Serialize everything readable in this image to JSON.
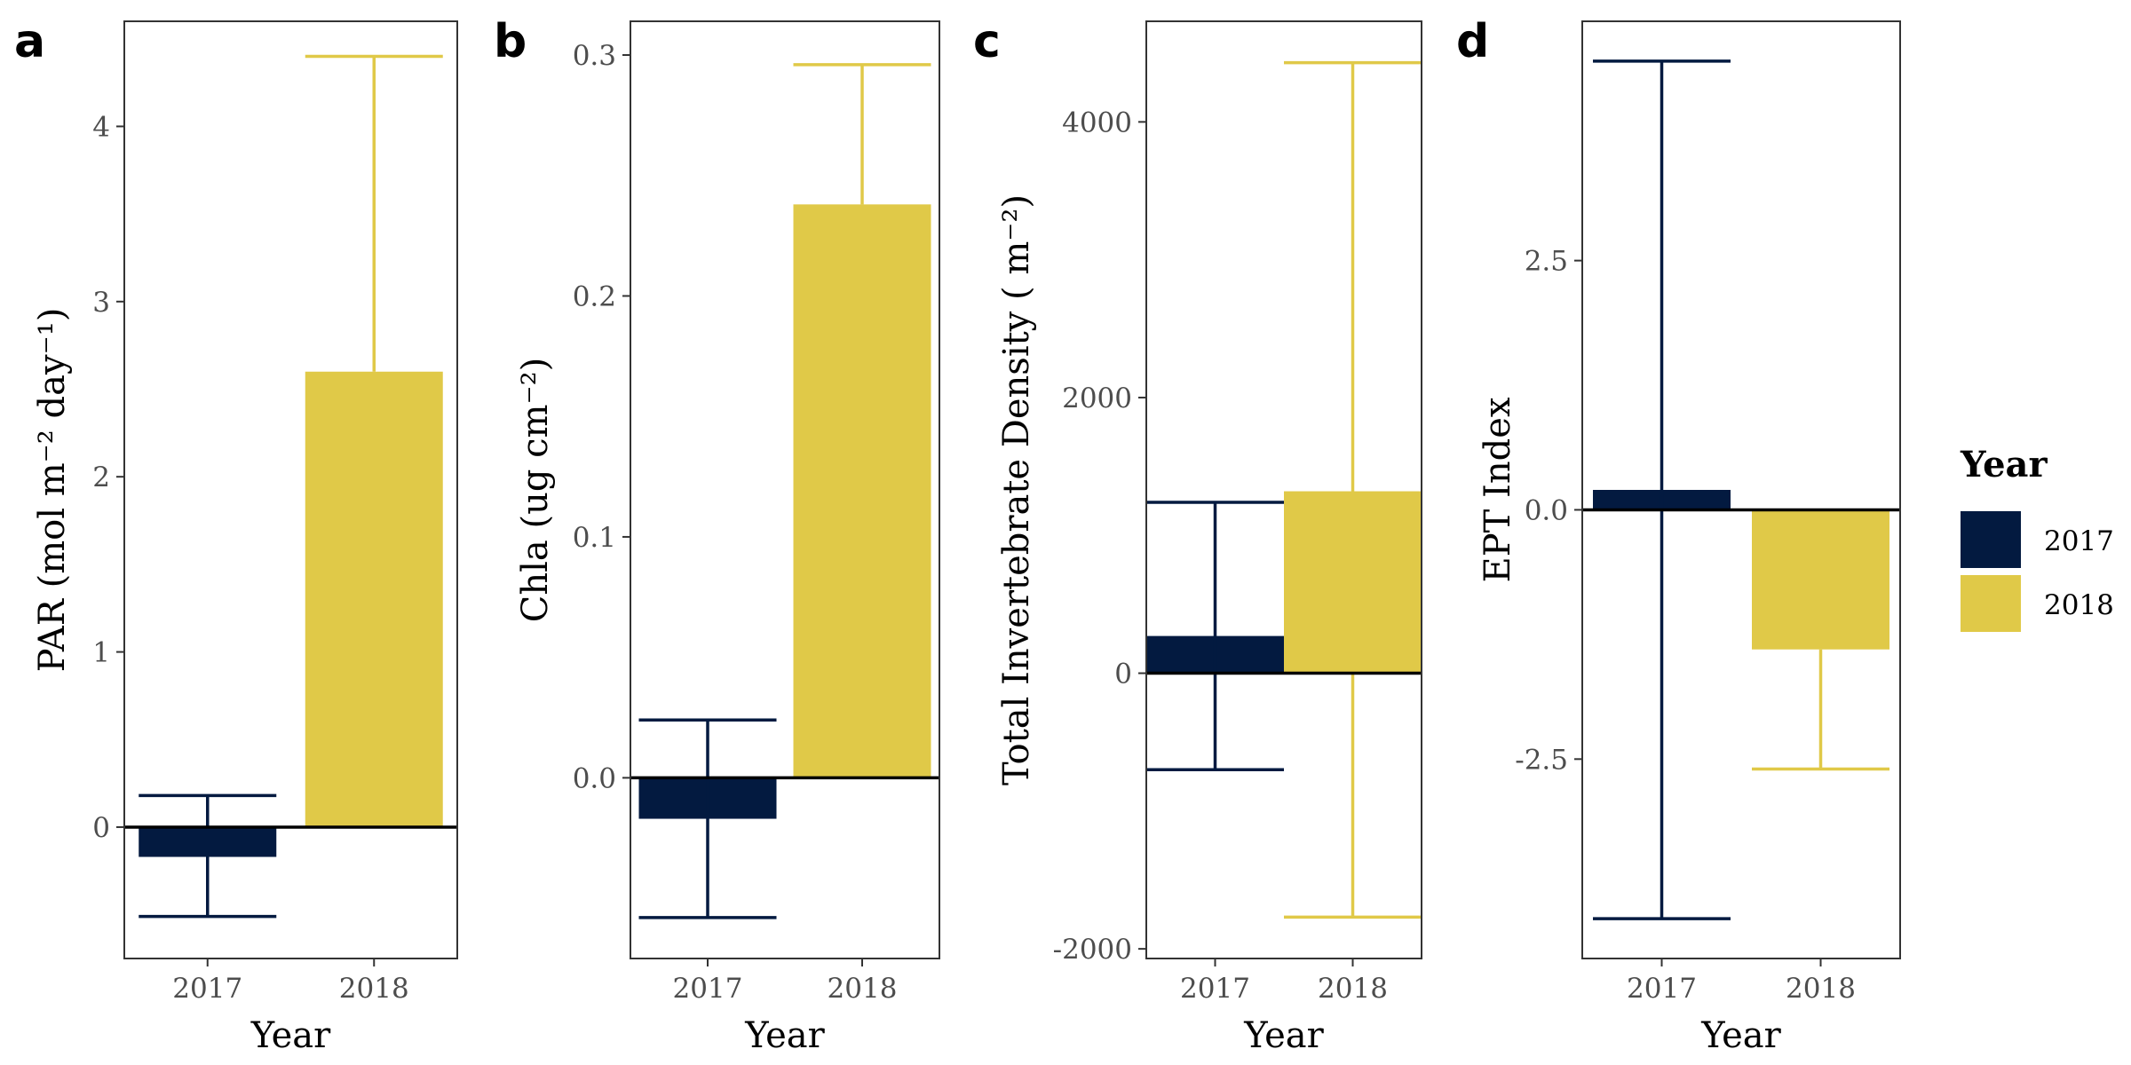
{
  "colors": {
    "2017": "#031a40",
    "2018": "#e0c948"
  },
  "legend": {
    "title": "Year",
    "items": [
      "2017",
      "2018"
    ]
  },
  "chart_data": [
    {
      "panel": "a",
      "type": "bar",
      "categories": [
        "2017",
        "2018"
      ],
      "values": [
        -0.17,
        2.6
      ],
      "error_low": [
        -0.51,
        2.6
      ],
      "error_high": [
        0.18,
        4.4
      ],
      "xlabel": "Year",
      "ylabel": "PAR (mol m⁻² day⁻¹)",
      "ylim": [
        -0.75,
        4.6
      ],
      "yticks": [
        0,
        1,
        2,
        3,
        4
      ],
      "ytick_labels": [
        "0",
        "1",
        "2",
        "3",
        "4"
      ],
      "zero_line": true
    },
    {
      "panel": "b",
      "type": "bar",
      "categories": [
        "2017",
        "2018"
      ],
      "values": [
        -0.017,
        0.238
      ],
      "error_low": [
        -0.058,
        0.238
      ],
      "error_high": [
        0.024,
        0.296
      ],
      "xlabel": "Year",
      "ylabel": "Chla (ug cm⁻²)",
      "ylim": [
        -0.075,
        0.314
      ],
      "yticks": [
        0.0,
        0.1,
        0.2,
        0.3
      ],
      "ytick_labels": [
        "0.0",
        "0.1",
        "0.2",
        "0.3"
      ],
      "zero_line": true
    },
    {
      "panel": "c",
      "type": "bar",
      "categories": [
        "2017",
        "2018"
      ],
      "values": [
        270,
        1320
      ],
      "error_low": [
        -700,
        -1770
      ],
      "error_high": [
        1240,
        4430
      ],
      "xlabel": "Year",
      "ylabel": "Total Invertebrate Density ( m⁻²)",
      "ylim": [
        -2070,
        4730
      ],
      "yticks": [
        -2000,
        0,
        2000,
        4000
      ],
      "ytick_labels": [
        "-2000",
        "0",
        "2000",
        "4000"
      ],
      "zero_line": true
    },
    {
      "panel": "d",
      "type": "bar",
      "categories": [
        "2017",
        "2018"
      ],
      "values": [
        0.2,
        -1.4
      ],
      "error_low": [
        -4.1,
        -2.6
      ],
      "error_high": [
        4.5,
        -1.4
      ],
      "xlabel": "Year",
      "ylabel": "EPT Index",
      "ylim": [
        -4.5,
        4.9
      ],
      "yticks": [
        -2.5,
        0.0,
        2.5
      ],
      "ytick_labels": [
        "-2.5",
        "0.0",
        "2.5"
      ],
      "zero_line": true
    }
  ]
}
